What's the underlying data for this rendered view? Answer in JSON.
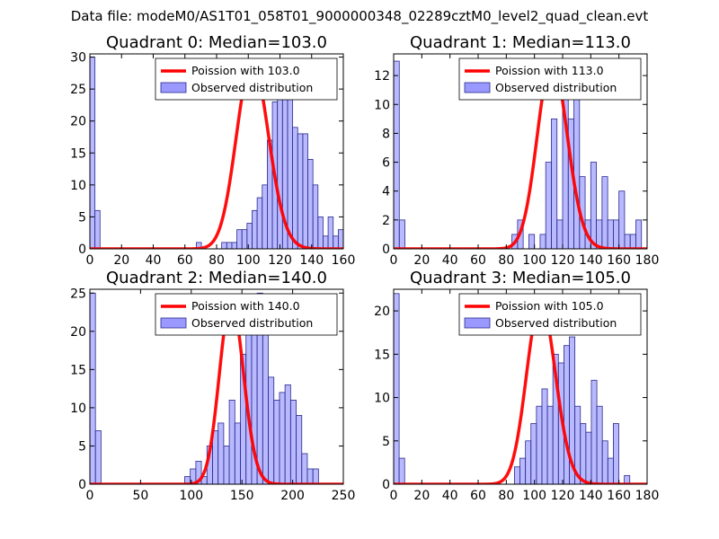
{
  "figure_title": "Data file: modeM0/AS1T01_058T01_9000000348_02289cztM0_level2_quad_clean.evt",
  "colors": {
    "poisson": "#ff0000",
    "bar_fill": "#7f7fff",
    "bar_edge": "#2a2a8c",
    "legend_edge": "#000000"
  },
  "chart_data": [
    {
      "type": "bar",
      "title": "Quadrant 0: Median=103.0",
      "xlim": [
        0,
        160
      ],
      "ylim": [
        0,
        30.5
      ],
      "xticks": [
        0,
        20,
        40,
        60,
        80,
        100,
        120,
        140,
        160
      ],
      "yticks": [
        0,
        5,
        10,
        15,
        20,
        25,
        30
      ],
      "bin_width": 3.2,
      "legend": {
        "placement": "top-right",
        "line": "Poission with 103.0",
        "bars": "Observed distribution"
      },
      "poisson": {
        "mean": 103.0,
        "peak": 29.2
      },
      "bars": [
        [
          0,
          30
        ],
        [
          3.2,
          6
        ],
        [
          67.2,
          1
        ],
        [
          83.2,
          1
        ],
        [
          86.4,
          1
        ],
        [
          89.6,
          1
        ],
        [
          92.8,
          3
        ],
        [
          96,
          3
        ],
        [
          99.2,
          4
        ],
        [
          102.4,
          6
        ],
        [
          105.6,
          8
        ],
        [
          108.8,
          10
        ],
        [
          112,
          17
        ],
        [
          115.2,
          23
        ],
        [
          118.4,
          27
        ],
        [
          121.6,
          29
        ],
        [
          124.8,
          24
        ],
        [
          128,
          19
        ],
        [
          131.2,
          18
        ],
        [
          134.4,
          18
        ],
        [
          137.6,
          14
        ],
        [
          140.8,
          10
        ],
        [
          144,
          5
        ],
        [
          147.2,
          2
        ],
        [
          150.4,
          5
        ],
        [
          153.6,
          2
        ],
        [
          156.8,
          3
        ]
      ]
    },
    {
      "type": "bar",
      "title": "Quadrant 1: Median=113.0",
      "xlim": [
        0,
        180
      ],
      "ylim": [
        0,
        13.5
      ],
      "xticks": [
        0,
        20,
        40,
        60,
        80,
        100,
        120,
        140,
        160,
        180
      ],
      "yticks": [
        0,
        2,
        4,
        6,
        8,
        10,
        12
      ],
      "bin_width": 4.0,
      "legend": {
        "placement": "top-right",
        "line": "Poission with 113.0",
        "bars": "Observed distribution"
      },
      "poisson": {
        "mean": 113.0,
        "peak": 13.0
      },
      "bars": [
        [
          0,
          13
        ],
        [
          4,
          2
        ],
        [
          84,
          1
        ],
        [
          88,
          2
        ],
        [
          96,
          1
        ],
        [
          104,
          1
        ],
        [
          108,
          6
        ],
        [
          112,
          9
        ],
        [
          116,
          2
        ],
        [
          120,
          11
        ],
        [
          124,
          9
        ],
        [
          128,
          13
        ],
        [
          132,
          5
        ],
        [
          136,
          2
        ],
        [
          140,
          6
        ],
        [
          144,
          2
        ],
        [
          148,
          5
        ],
        [
          152,
          2
        ],
        [
          156,
          2
        ],
        [
          160,
          4
        ],
        [
          164,
          1
        ],
        [
          168,
          1
        ],
        [
          172,
          2
        ]
      ]
    },
    {
      "type": "bar",
      "title": "Quadrant 2: Median=140.0",
      "xlim": [
        0,
        250
      ],
      "ylim": [
        0,
        25.5
      ],
      "xticks": [
        0,
        50,
        100,
        150,
        200,
        250
      ],
      "yticks": [
        0,
        5,
        10,
        15,
        20,
        25
      ],
      "bin_width": 5.5,
      "legend": {
        "placement": "top-right",
        "line": "Poission with 140.0",
        "bars": "Observed distribution"
      },
      "poisson": {
        "mean": 140.0,
        "peak": 24.0
      },
      "bars": [
        [
          0,
          25
        ],
        [
          5.5,
          7
        ],
        [
          93.5,
          1
        ],
        [
          99,
          2
        ],
        [
          104.5,
          3
        ],
        [
          110,
          1
        ],
        [
          115.5,
          5
        ],
        [
          121,
          7
        ],
        [
          126.5,
          8
        ],
        [
          132,
          5
        ],
        [
          137.5,
          11
        ],
        [
          143,
          8
        ],
        [
          148.5,
          17
        ],
        [
          154,
          23
        ],
        [
          159.5,
          22
        ],
        [
          165,
          25
        ],
        [
          170.5,
          23
        ],
        [
          176,
          14
        ],
        [
          181.5,
          11
        ],
        [
          187,
          12
        ],
        [
          192.5,
          13
        ],
        [
          198,
          11
        ],
        [
          203.5,
          9
        ],
        [
          209,
          4
        ],
        [
          214.5,
          2
        ],
        [
          220,
          2
        ]
      ]
    },
    {
      "type": "bar",
      "title": "Quadrant 3: Median=105.0",
      "xlim": [
        0,
        180
      ],
      "ylim": [
        0,
        22.5
      ],
      "xticks": [
        0,
        20,
        40,
        60,
        80,
        100,
        120,
        140,
        160,
        180
      ],
      "yticks": [
        0,
        5,
        10,
        15,
        20
      ],
      "bin_width": 3.9,
      "legend": {
        "placement": "top-right",
        "line": "Poission with 105.0",
        "bars": "Observed distribution"
      },
      "poisson": {
        "mean": 105.0,
        "peak": 21.0
      },
      "bars": [
        [
          0,
          22
        ],
        [
          3.9,
          3
        ],
        [
          85.8,
          2
        ],
        [
          89.7,
          3
        ],
        [
          93.6,
          5
        ],
        [
          97.5,
          7
        ],
        [
          101.4,
          9
        ],
        [
          105.3,
          11
        ],
        [
          109.2,
          9
        ],
        [
          113.1,
          15
        ],
        [
          117,
          14
        ],
        [
          120.9,
          16
        ],
        [
          124.8,
          17
        ],
        [
          128.7,
          9
        ],
        [
          132.6,
          7
        ],
        [
          136.5,
          6
        ],
        [
          140.4,
          12
        ],
        [
          144.3,
          9
        ],
        [
          148.2,
          5
        ],
        [
          152.1,
          3
        ],
        [
          156,
          7
        ],
        [
          163.8,
          1
        ]
      ]
    }
  ]
}
